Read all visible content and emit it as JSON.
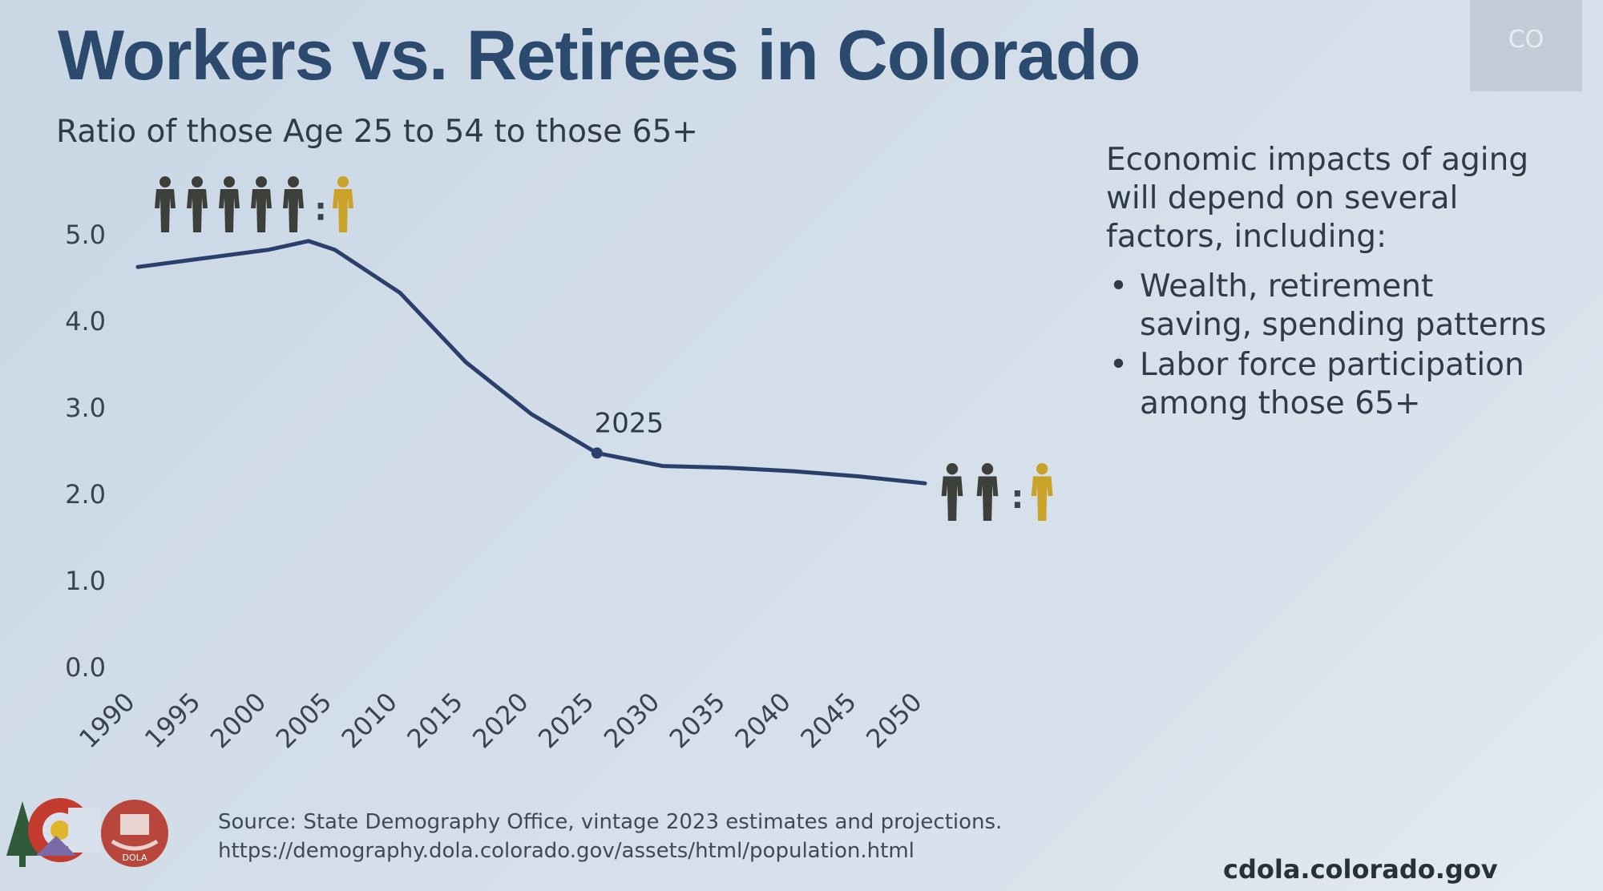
{
  "slide": {
    "title": "Workers vs. Retirees in Colorado",
    "subtitle": "Ratio of those Age 25 to 54 to those 65+",
    "corner_label": "CO"
  },
  "chart_data": {
    "type": "line",
    "title": "",
    "xlabel": "",
    "ylabel": "",
    "x": [
      1990,
      1995,
      2000,
      2003,
      2005,
      2010,
      2015,
      2020,
      2025,
      2030,
      2035,
      2040,
      2045,
      2050
    ],
    "y": [
      4.6,
      4.7,
      4.8,
      4.9,
      4.8,
      4.3,
      3.5,
      2.9,
      2.45,
      2.3,
      2.28,
      2.24,
      2.18,
      2.1
    ],
    "x_ticks": [
      "1990",
      "1995",
      "2000",
      "2005",
      "2010",
      "2015",
      "2020",
      "2025",
      "2030",
      "2035",
      "2040",
      "2045",
      "2050"
    ],
    "y_ticks": [
      "0.0",
      "1.0",
      "2.0",
      "3.0",
      "4.0",
      "5.0"
    ],
    "xlim": [
      1990,
      2050
    ],
    "ylim": [
      0,
      5
    ],
    "grid": false,
    "line_color": "#2b3f6c",
    "annotations": [
      {
        "x": 2025,
        "y": 2.45,
        "text": "2025"
      }
    ],
    "ratio_icons": [
      {
        "at": "start",
        "workers": 5,
        "retirees": 1
      },
      {
        "at": "end",
        "workers": 2,
        "retirees": 1
      }
    ],
    "icon_colors": {
      "worker": "#3d3f3a",
      "retiree": "#c9a227"
    },
    "ratio_separator": ":"
  },
  "sidebar": {
    "heading": "Economic impacts of aging will depend on several factors, including:",
    "bullet": "•",
    "items": [
      "Wealth, retirement saving, spending patterns",
      "Labor force participation among those 65+"
    ]
  },
  "footer": {
    "source_line1": "Source: State Demography Office, vintage 2023 estimates and projections.",
    "source_line2": "https://demography.dola.colorado.gov/assets/html/population.html",
    "site": "cdola.colorado.gov",
    "logo_text": "DOLA"
  }
}
